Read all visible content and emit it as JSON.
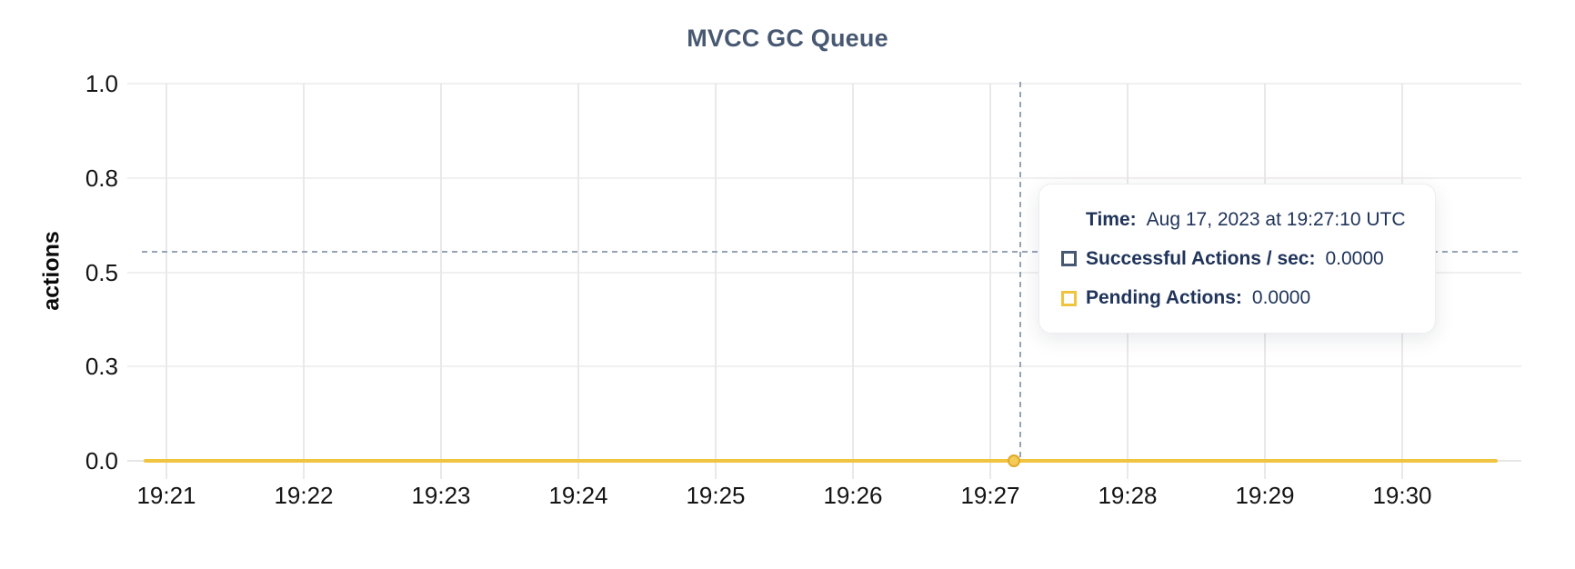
{
  "chart_data": {
    "type": "line",
    "title": "MVCC GC Queue",
    "xlabel": "",
    "ylabel": "actions",
    "ylim": [
      0,
      1.0
    ],
    "y_tick_labels": [
      "1.0",
      "0.8",
      "0.5",
      "0.3",
      "0.0"
    ],
    "categories": [
      "19:21",
      "19:22",
      "19:23",
      "19:24",
      "19:25",
      "19:26",
      "19:27",
      "19:28",
      "19:29",
      "19:30"
    ],
    "series": [
      {
        "name": "Successful Actions / sec",
        "color": "#475872",
        "values": [
          0,
          0,
          0,
          0,
          0,
          0,
          0,
          0,
          0,
          0
        ]
      },
      {
        "name": "Pending Actions",
        "color": "#F1C43F",
        "values": [
          0,
          0,
          0,
          0,
          0,
          0,
          0,
          0,
          0,
          0
        ]
      }
    ],
    "grid": true,
    "legend_position": "none",
    "hover_point": {
      "time": "Aug 17, 2023 at 19:27:10 UTC",
      "x_label": "19:27:10",
      "values": [
        0.0,
        0.0
      ]
    }
  },
  "tooltip": {
    "time_label": "Time:",
    "time_value": "Aug 17, 2023 at 19:27:10 UTC",
    "series": [
      {
        "label": "Successful Actions / sec:",
        "value": "0.0000",
        "color": "#475872"
      },
      {
        "label": "Pending Actions:",
        "value": "0.0000",
        "color": "#F1C43F"
      }
    ]
  },
  "colors": {
    "title": "#475872",
    "pending_line": "#F1C43F",
    "crosshair": "#96A3B5",
    "grid": "#ECECEC"
  }
}
